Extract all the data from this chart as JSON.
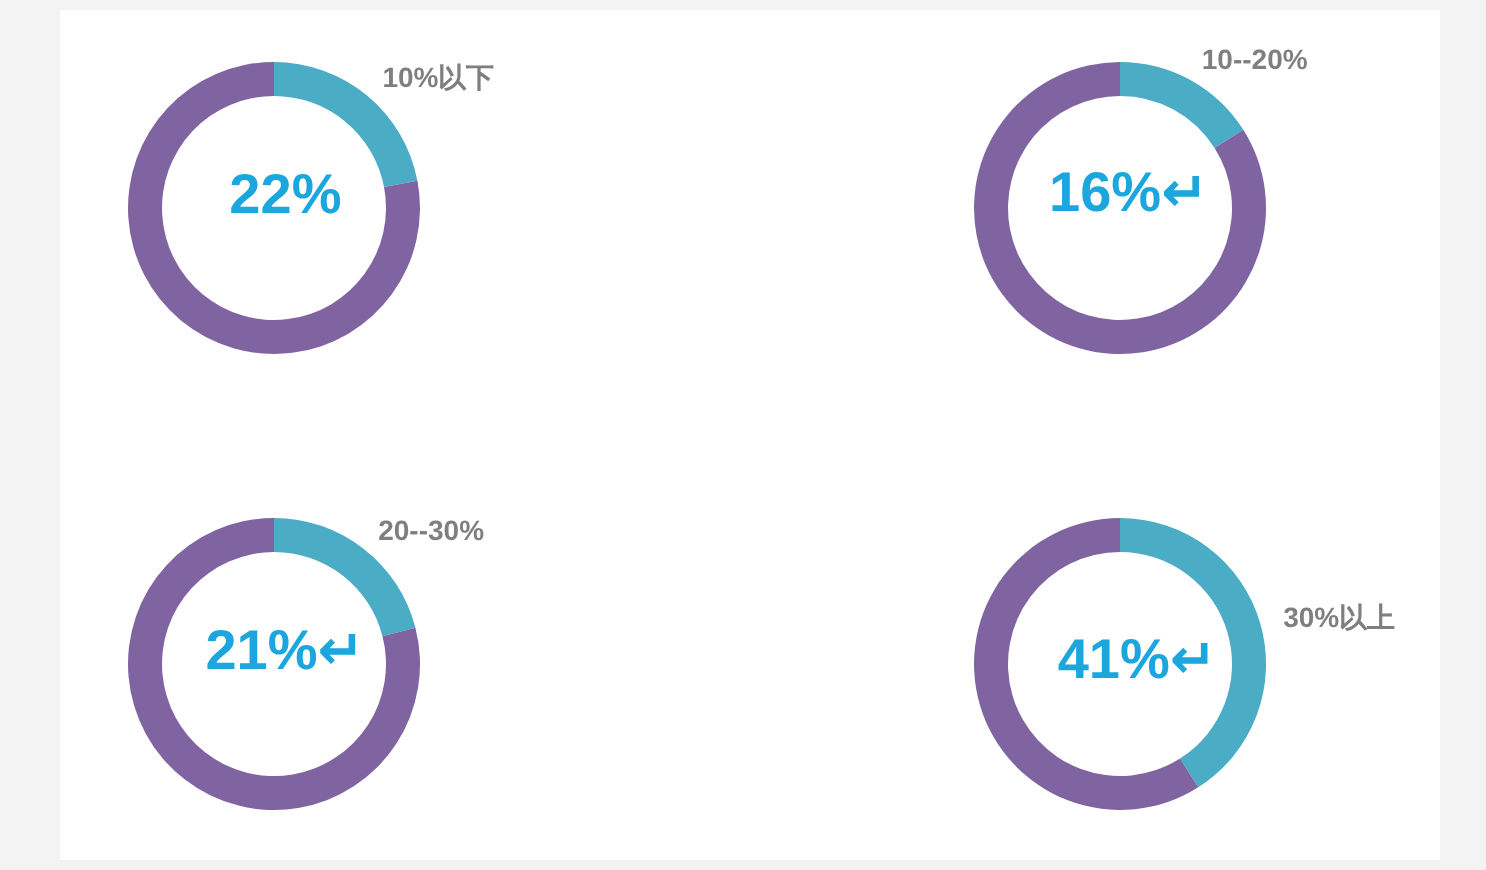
{
  "chart_data": [
    {
      "type": "donut",
      "categories": [
        "10%以下",
        null
      ],
      "values": [
        22,
        78
      ],
      "colors": [
        "#4bacc6",
        "#8064a2"
      ],
      "value_labels": [
        "22%",
        null
      ]
    },
    {
      "type": "donut",
      "categories": [
        "10--20%",
        null
      ],
      "values": [
        16,
        84
      ],
      "colors": [
        "#4bacc6",
        "#8064a2"
      ],
      "value_labels": [
        "16%↵",
        null
      ]
    },
    {
      "type": "donut",
      "categories": [
        "20--30%",
        null
      ],
      "values": [
        21,
        79
      ],
      "colors": [
        "#4bacc6",
        "#8064a2"
      ],
      "value_labels": [
        "21%↵",
        null
      ]
    },
    {
      "type": "donut",
      "categories": [
        "30%以上",
        null
      ],
      "values": [
        41,
        59
      ],
      "colors": [
        "#4bacc6",
        "#8064a2"
      ],
      "value_labels": [
        "41%↵",
        null
      ]
    }
  ]
}
